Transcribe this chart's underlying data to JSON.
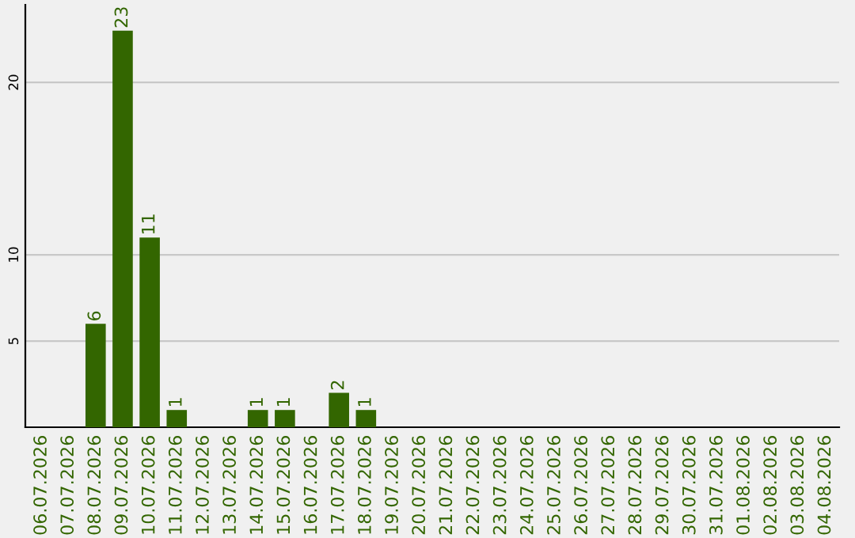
{
  "chart_data": {
    "type": "bar",
    "categories": [
      "06.07.2026",
      "07.07.2026",
      "08.07.2026",
      "09.07.2026",
      "10.07.2026",
      "11.07.2026",
      "12.07.2026",
      "13.07.2026",
      "14.07.2026",
      "15.07.2026",
      "16.07.2026",
      "17.07.2026",
      "18.07.2026",
      "19.07.2026",
      "20.07.2026",
      "21.07.2026",
      "22.07.2026",
      "23.07.2026",
      "24.07.2026",
      "25.07.2026",
      "26.07.2026",
      "27.07.2026",
      "28.07.2026",
      "29.07.2026",
      "30.07.2026",
      "31.07.2026",
      "01.08.2026",
      "02.08.2026",
      "03.08.2026",
      "04.08.2026"
    ],
    "values": [
      0,
      0,
      6,
      23,
      11,
      1,
      0,
      0,
      1,
      1,
      0,
      2,
      1,
      0,
      0,
      0,
      0,
      0,
      0,
      0,
      0,
      0,
      0,
      0,
      0,
      0,
      0,
      0,
      0,
      0
    ],
    "value_labels": [
      null,
      null,
      "6",
      "23",
      "11",
      "1",
      null,
      null,
      "1",
      "1",
      null,
      "2",
      "1",
      null,
      null,
      null,
      null,
      null,
      null,
      null,
      null,
      null,
      null,
      null,
      null,
      null,
      null,
      null,
      null,
      null
    ],
    "color": "#336600",
    "ylim": [
      0,
      24.5
    ],
    "yticks": [
      5,
      10,
      20
    ],
    "grid": "y",
    "legend": false
  }
}
